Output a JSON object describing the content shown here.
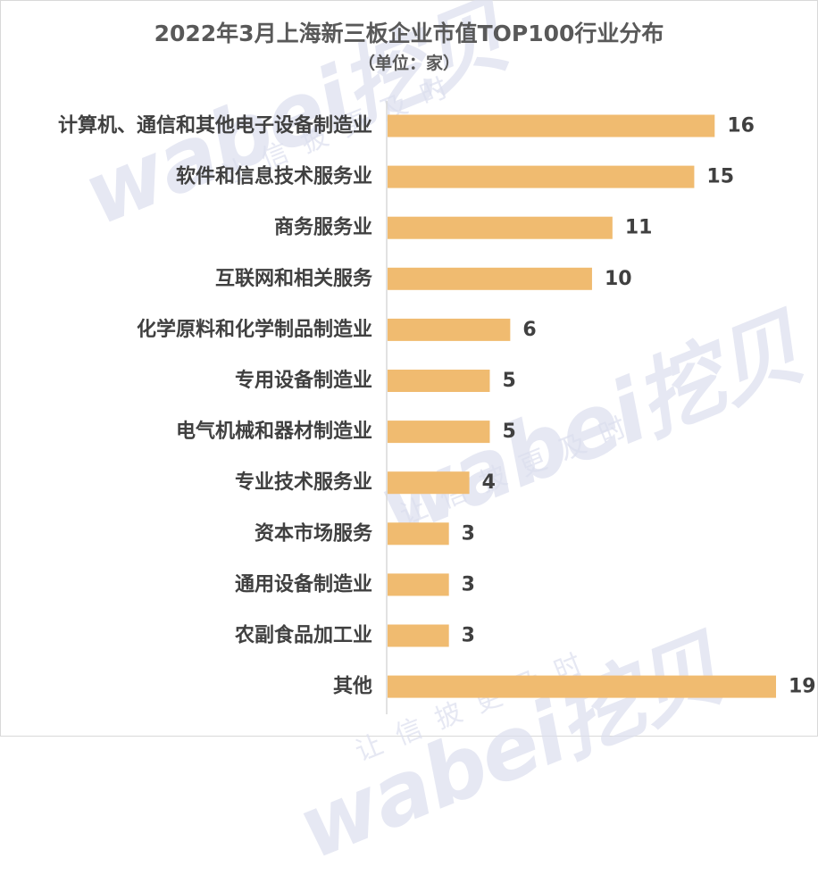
{
  "chart_data": {
    "type": "bar",
    "orientation": "horizontal",
    "title": "2022年3月上海新三板企业市值TOP100行业分布",
    "subtitle": "（单位：家）",
    "categories": [
      "计算机、通信和其他电子设备制造业",
      "软件和信息技术服务业",
      "商务服务业",
      "互联网和相关服务",
      "化学原料和化学制品制造业",
      "专用设备制造业",
      "电气机械和器材制造业",
      "专业技术服务业",
      "资本市场服务",
      "通用设备制造业",
      "农副食品加工业",
      "其他"
    ],
    "values": [
      16,
      15,
      11,
      10,
      6,
      5,
      5,
      4,
      3,
      3,
      3,
      19
    ],
    "xlim": [
      0,
      19
    ],
    "grid": false,
    "legend": "none",
    "bar_color": "#f0bb70",
    "axis_color": "#d9d9d9"
  },
  "watermark": {
    "brand": "wabei挖贝",
    "slogan": "让信披更及时"
  }
}
